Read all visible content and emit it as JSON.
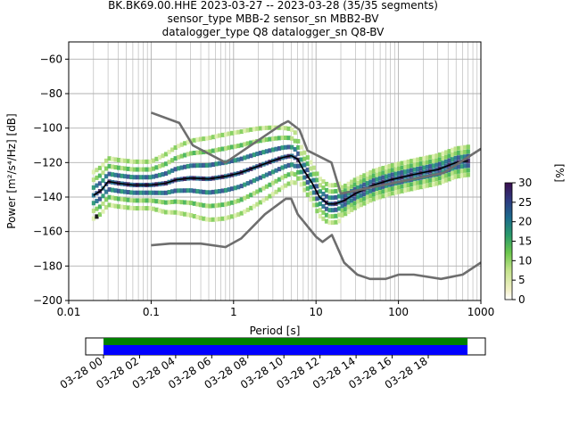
{
  "title_lines": [
    "BK.BK69.00.HHE   2023-03-27 -- 2023-03-28  (35/35 segments)",
    "sensor_type MBB-2 sensor_sn MBB2-BV",
    "datalogger_type Q8 datalogger_sn Q8-BV"
  ],
  "colors": {
    "noise_model": "#6e6e6e",
    "mean_line": "#000000",
    "grid": "#b0b0b0",
    "availability_green": "#008000",
    "availability_blue": "#0000ff"
  },
  "chart_data": [
    {
      "type": "heatmap",
      "title": "",
      "xlabel": "Period [s]",
      "ylabel": "Power [m²/s⁴/Hz] [dB]",
      "xscale": "log",
      "xlim": [
        0.01,
        1000
      ],
      "ylim": [
        -200,
        -50
      ],
      "grid": true,
      "x_tick_labels": [
        "0.01",
        "0.1",
        "1",
        "10",
        "100",
        "1000"
      ],
      "y_tick_labels": [
        "−200",
        "−180",
        "−160",
        "−140",
        "−120",
        "−100",
        "−80",
        "−60"
      ],
      "x_ticks": [
        0.01,
        0.1,
        1,
        10,
        100,
        1000
      ],
      "y_ticks": [
        -200,
        -180,
        -160,
        -140,
        -120,
        -100,
        -80,
        -60
      ],
      "colorbar": {
        "label": "[%]",
        "range": [
          0,
          30
        ],
        "tick_labels": [
          "0",
          "5",
          "10",
          "15",
          "20",
          "25",
          "30"
        ],
        "colormap": "pqlx"
      },
      "series": [
        {
          "role": "mean",
          "points": [
            [
              0.02,
              -139
            ],
            [
              0.025,
              -136
            ],
            [
              0.03,
              -131
            ],
            [
              0.04,
              -132
            ],
            [
              0.06,
              -133
            ],
            [
              0.1,
              -133
            ],
            [
              0.15,
              -132
            ],
            [
              0.2,
              -130
            ],
            [
              0.3,
              -129
            ],
            [
              0.5,
              -129.5
            ],
            [
              0.8,
              -128
            ],
            [
              1.2,
              -126
            ],
            [
              2,
              -122
            ],
            [
              3,
              -119
            ],
            [
              4,
              -117
            ],
            [
              5,
              -116
            ],
            [
              6,
              -118
            ],
            [
              7,
              -124
            ],
            [
              9,
              -132
            ],
            [
              11,
              -140
            ],
            [
              14,
              -144
            ],
            [
              17,
              -144
            ],
            [
              22,
              -142
            ],
            [
              30,
              -138
            ],
            [
              50,
              -133
            ],
            [
              80,
              -130
            ],
            [
              150,
              -127
            ],
            [
              300,
              -124
            ],
            [
              500,
              -120
            ],
            [
              700,
              -119
            ]
          ]
        },
        {
          "role": "noise-model-high",
          "points": [
            [
              0.1,
              -91
            ],
            [
              0.22,
              -97
            ],
            [
              0.32,
              -110
            ],
            [
              0.8,
              -120
            ],
            [
              3.8,
              -98
            ],
            [
              4.6,
              -96
            ],
            [
              6.3,
              -101
            ],
            [
              7.9,
              -113
            ],
            [
              15.4,
              -120
            ],
            [
              20,
              -138
            ],
            [
              354,
              -126
            ],
            [
              1000,
              -112
            ]
          ]
        },
        {
          "role": "noise-model-low",
          "points": [
            [
              0.1,
              -168
            ],
            [
              0.17,
              -167
            ],
            [
              0.4,
              -167
            ],
            [
              0.8,
              -169
            ],
            [
              1.24,
              -164
            ],
            [
              2.4,
              -150
            ],
            [
              4.3,
              -141
            ],
            [
              5,
              -141
            ],
            [
              6,
              -150
            ],
            [
              10,
              -163
            ],
            [
              12,
              -166
            ],
            [
              15.6,
              -162
            ],
            [
              21.9,
              -178
            ],
            [
              31.6,
              -185
            ],
            [
              45,
              -187.5
            ],
            [
              70,
              -187.5
            ],
            [
              101,
              -185
            ],
            [
              154,
              -185
            ],
            [
              328,
              -187.5
            ],
            [
              600,
              -185
            ],
            [
              1000,
              -178
            ]
          ]
        }
      ]
    },
    {
      "type": "bar",
      "title": "",
      "xlabel": "",
      "ylabel": "",
      "x_tick_labels": [
        "03-28 00",
        "03-28 02",
        "03-28 04",
        "03-28 06",
        "03-28 08",
        "03-28 10",
        "03-28 12",
        "03-28 14",
        "03-28 16",
        "03-28 18"
      ],
      "x_ticks_hours": [
        0,
        2,
        4,
        6,
        8,
        10,
        12,
        14,
        16,
        18
      ],
      "xlim_hours": [
        -3,
        19.2
      ],
      "series": [
        {
          "role": "data-availability",
          "start_hours": 0,
          "end_hours": 18
        },
        {
          "role": "psd-coverage",
          "start_hours": 0,
          "end_hours": 18
        }
      ]
    }
  ]
}
